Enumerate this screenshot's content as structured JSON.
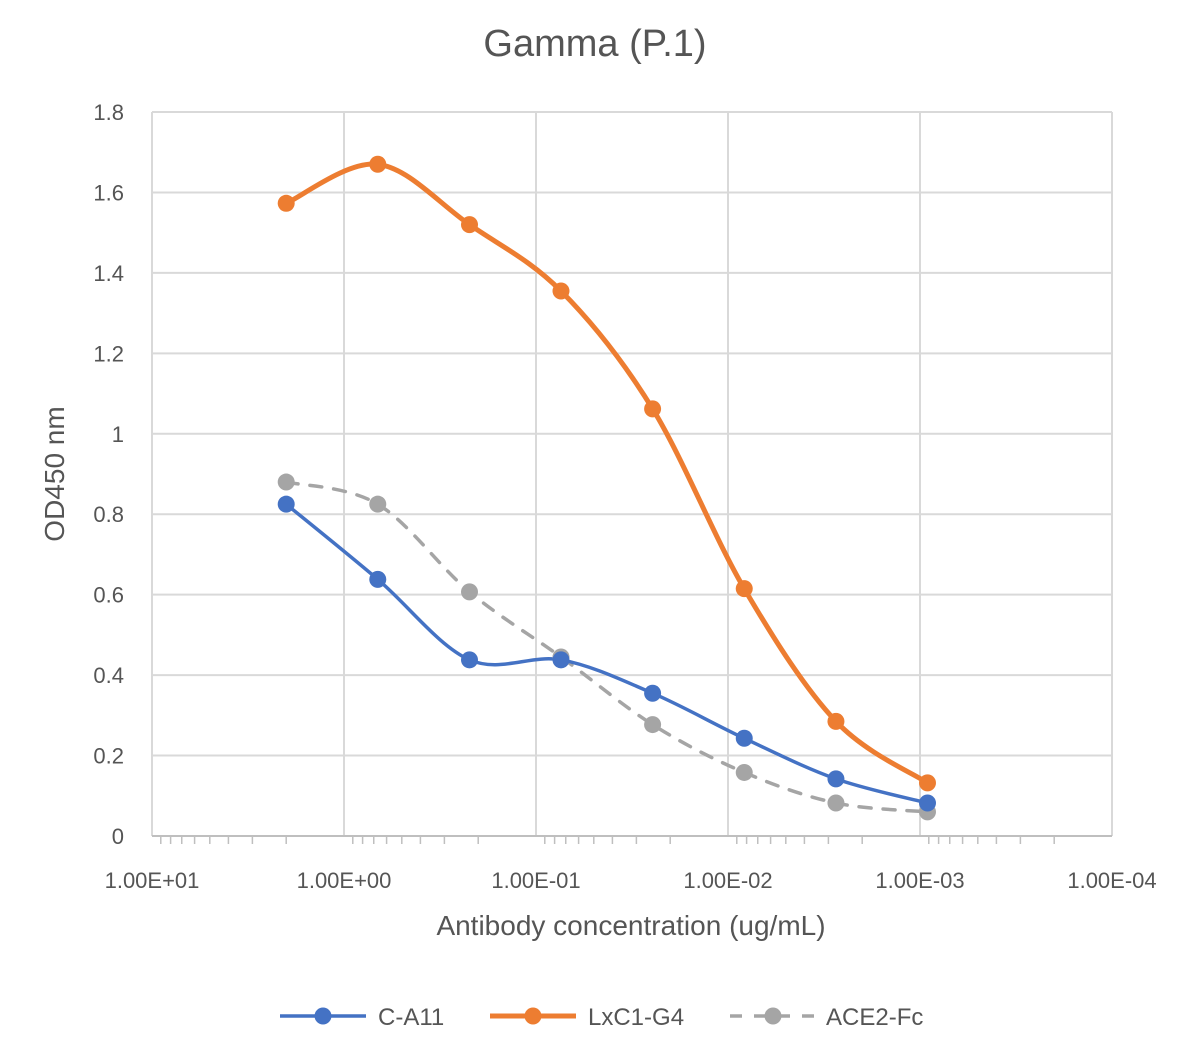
{
  "chart_data": {
    "type": "line",
    "title": "Gamma (P.1)",
    "xlabel": "Antibody concentration (ug/mL)",
    "ylabel": "OD450 nm",
    "x_scale": "log",
    "x_reversed": true,
    "xlim": [
      10,
      0.0001
    ],
    "ylim": [
      0,
      1.8
    ],
    "y_ticks": [
      0,
      0.2,
      0.4,
      0.6,
      0.8,
      1,
      1.2,
      1.4,
      1.6,
      1.8
    ],
    "y_tick_labels": [
      "0",
      "0.2",
      "0.4",
      "0.6",
      "0.8",
      "1",
      "1.2",
      "1.4",
      "1.6",
      "1.8"
    ],
    "x_ticks": [
      10,
      1,
      0.1,
      0.01,
      0.001,
      0.0001
    ],
    "x_tick_labels": [
      "1.00E+01",
      "1.00E+00",
      "1.00E-01",
      "1.00E-02",
      "1.00E-03",
      "1.00E-04"
    ],
    "grid": true,
    "legend_position": "bottom",
    "x": [
      2,
      0.667,
      0.222,
      0.0741,
      0.0247,
      0.00823,
      0.00274,
      0.000914
    ],
    "series": [
      {
        "name": "C-A11",
        "color": "#4472C4",
        "dashed": false,
        "values": [
          0.825,
          0.638,
          0.438,
          0.438,
          0.355,
          0.243,
          0.142,
          0.082
        ]
      },
      {
        "name": "LxC1-G4",
        "color": "#ED7D31",
        "dashed": false,
        "values": [
          1.573,
          1.67,
          1.52,
          1.355,
          1.062,
          0.615,
          0.285,
          0.132
        ]
      },
      {
        "name": "ACE2-Fc",
        "color": "#A5A5A5",
        "dashed": true,
        "values": [
          0.88,
          0.825,
          0.607,
          0.445,
          0.277,
          0.158,
          0.082,
          0.06
        ]
      }
    ]
  }
}
